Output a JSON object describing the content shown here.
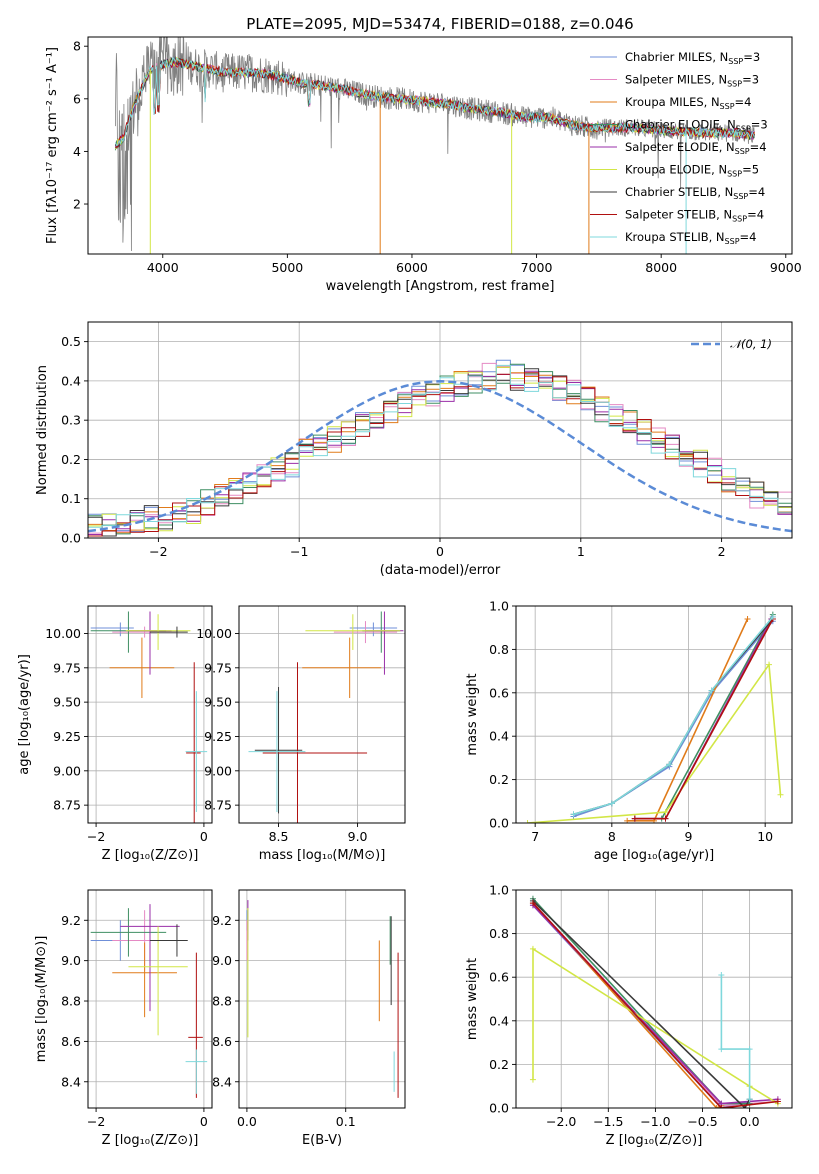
{
  "colors": {
    "c0": "#6f8fd8",
    "c1": "#e58ac4",
    "c2": "#e07b1a",
    "c3": "#3f8f63",
    "c4": "#9a2fa8",
    "c5": "#d2e646",
    "c6": "#3a3a3a",
    "c7": "#b01010",
    "c8": "#7fd8dc",
    "gray": "#808080",
    "gauss": "#5b8bd6"
  },
  "chart_data": [
    {
      "id": "spectrum",
      "type": "line",
      "title": "PLATE=2095, MJD=53474, FIBERID=0188, z=0.046",
      "xlabel": "wavelength [Angstrom, rest frame]",
      "ylabel": "Flux [fλ10⁻¹⁷ erg cm⁻² s⁻¹ A⁻¹]",
      "xlim": [
        3400,
        9050
      ],
      "ylim": [
        0.1,
        8.35
      ],
      "xticks": [
        4000,
        5000,
        6000,
        7000,
        8000,
        9000
      ],
      "yticks": [
        2,
        4,
        6,
        8
      ],
      "grid": false,
      "legend_position": "top-right",
      "legend": [
        {
          "text": "Chabrier MILES, N",
          "sub": "SSP",
          "tail": "=3",
          "color": "c0"
        },
        {
          "text": "Salpeter MILES, N",
          "sub": "SSP",
          "tail": "=3",
          "color": "c1"
        },
        {
          "text": "Kroupa MILES, N",
          "sub": "SSP",
          "tail": "=4",
          "color": "c2"
        },
        {
          "text": "Chabrier ELODIE, N",
          "sub": "SSP",
          "tail": "=3",
          "color": "c3"
        },
        {
          "text": "Salpeter ELODIE, N",
          "sub": "SSP",
          "tail": "=4",
          "color": "c4"
        },
        {
          "text": "Kroupa ELODIE, N",
          "sub": "SSP",
          "tail": "=5",
          "color": "c5"
        },
        {
          "text": "Chabrier STELIB, N",
          "sub": "SSP",
          "tail": "=4",
          "color": "c6"
        },
        {
          "text": "Salpeter STELIB, N",
          "sub": "SSP",
          "tail": "=4",
          "color": "c7"
        },
        {
          "text": "Kroupa STELIB, N",
          "sub": "SSP",
          "tail": "=4",
          "color": "c8"
        }
      ],
      "continuum": {
        "wavelength": [
          3620,
          3700,
          3800,
          3900,
          4000,
          4100,
          4300,
          4500,
          4700,
          4900,
          5100,
          5300,
          5500,
          5700,
          5900,
          6100,
          6300,
          6500,
          6700,
          6900,
          7100,
          7300,
          7400,
          7600,
          7800,
          8000,
          8200,
          8400,
          8600,
          8750
        ],
        "flux": [
          4.4,
          4.8,
          6.1,
          7.1,
          7.3,
          7.4,
          7.2,
          7.0,
          7.0,
          6.9,
          6.6,
          6.5,
          6.3,
          6.1,
          6.0,
          5.9,
          5.8,
          5.6,
          5.5,
          5.3,
          5.3,
          5.0,
          4.9,
          4.9,
          4.9,
          4.8,
          4.75,
          4.7,
          4.7,
          4.6
        ]
      }
    },
    {
      "id": "residuals",
      "type": "line",
      "xlabel": "(data-model)/error",
      "ylabel": "Normed distribution",
      "xlim": [
        -2.5,
        2.5
      ],
      "ylim": [
        0.0,
        0.55
      ],
      "xticks": [
        -2,
        -1,
        0,
        1,
        2
      ],
      "yticks": [
        0.0,
        0.1,
        0.2,
        0.3,
        0.4,
        0.5
      ],
      "grid": true,
      "legend_position": "top-right",
      "legend": [
        {
          "text": "𝒩(0, 1)",
          "color": "gauss"
        }
      ],
      "bin_width": 0.1,
      "bin_start": -2.5,
      "base_values": [
        0.03,
        0.03,
        0.04,
        0.04,
        0.05,
        0.05,
        0.06,
        0.07,
        0.09,
        0.11,
        0.12,
        0.14,
        0.16,
        0.17,
        0.19,
        0.22,
        0.24,
        0.25,
        0.27,
        0.29,
        0.3,
        0.32,
        0.34,
        0.36,
        0.37,
        0.38,
        0.39,
        0.4,
        0.41,
        0.42,
        0.41,
        0.4,
        0.4,
        0.38,
        0.37,
        0.35,
        0.33,
        0.31,
        0.29,
        0.27,
        0.25,
        0.23,
        0.21,
        0.19,
        0.17,
        0.15,
        0.13,
        0.11,
        0.1,
        0.09,
        0.08
      ],
      "model_count": 9
    },
    {
      "id": "age-vs-Z",
      "type": "scatter",
      "xlabel": "Z [log₁₀(Z/Z⊙)]",
      "ylabel": "age  [log₁₀(age/yr)]",
      "xlim": [
        -2.15,
        0.15
      ],
      "ylim": [
        8.62,
        10.2
      ],
      "xticks": [
        -2,
        0
      ],
      "yticks": [
        8.75,
        9.0,
        9.25,
        9.5,
        9.75,
        10.0
      ],
      "grid": true,
      "points": [
        {
          "x": -1.55,
          "y": 10.04,
          "dx": [
            -0.55,
            0.25
          ],
          "dy": [
            0.06,
            0.04
          ],
          "color": "c0"
        },
        {
          "x": -1.1,
          "y": 10.01,
          "dx": [
            -0.6,
            0.6
          ],
          "dy": [
            0.04,
            0.04
          ],
          "color": "c1"
        },
        {
          "x": -1.15,
          "y": 9.75,
          "dx": [
            -0.6,
            0.6
          ],
          "dy": [
            0.22,
            0.22
          ],
          "color": "c2"
        },
        {
          "x": -1.4,
          "y": 10.02,
          "dx": [
            -0.7,
            0.7
          ],
          "dy": [
            0.16,
            0.14
          ],
          "color": "c3"
        },
        {
          "x": -1.0,
          "y": 10.02,
          "dx": [
            -0.4,
            0.4
          ],
          "dy": [
            0.32,
            0.14
          ],
          "color": "c4"
        },
        {
          "x": -0.85,
          "y": 10.02,
          "dx": [
            -0.6,
            0.6
          ],
          "dy": [
            0.14,
            0.12
          ],
          "color": "c5"
        },
        {
          "x": -0.5,
          "y": 10.01,
          "dx": [
            -0.5,
            0.2
          ],
          "dy": [
            0.04,
            0.04
          ],
          "color": "c6"
        },
        {
          "x": -0.18,
          "y": 9.13,
          "dx": [
            -0.15,
            0.12
          ],
          "dy": [
            0.66,
            0.66
          ],
          "color": "c7"
        },
        {
          "x": -0.14,
          "y": 9.14,
          "dx": [
            -0.2,
            0.2
          ],
          "dy": [
            0.44,
            0.44
          ],
          "color": "c8"
        }
      ]
    },
    {
      "id": "age-vs-mass",
      "type": "scatter",
      "xlabel": "mass [log₁₀(M/M⊙)]",
      "ylabel": "",
      "xlim": [
        8.25,
        9.3
      ],
      "ylim": [
        8.62,
        10.2
      ],
      "xticks": [
        8.5,
        9.0
      ],
      "yticks": [
        8.75,
        9.0,
        9.25,
        9.5,
        9.75,
        10.0
      ],
      "grid": true,
      "points": [
        {
          "x": 9.1,
          "y": 10.04,
          "dx": [
            -0.15,
            0.15
          ],
          "dy": [
            0.06,
            0.04
          ],
          "color": "c0"
        },
        {
          "x": 9.05,
          "y": 10.01,
          "dx": [
            -0.2,
            0.2
          ],
          "dy": [
            0.08,
            0.08
          ],
          "color": "c1"
        },
        {
          "x": 8.95,
          "y": 9.75,
          "dx": [
            -0.3,
            0.2
          ],
          "dy": [
            0.22,
            0.22
          ],
          "color": "c2"
        },
        {
          "x": 9.15,
          "y": 10.02,
          "dx": [
            -0.12,
            0.12
          ],
          "dy": [
            0.16,
            0.14
          ],
          "color": "c3"
        },
        {
          "x": 9.17,
          "y": 10.02,
          "dx": [
            -0.12,
            0.12
          ],
          "dy": [
            0.32,
            0.14
          ],
          "color": "c4"
        },
        {
          "x": 8.97,
          "y": 10.02,
          "dx": [
            -0.3,
            0.3
          ],
          "dy": [
            0.14,
            0.12
          ],
          "color": "c5"
        },
        {
          "x": 8.5,
          "y": 9.15,
          "dx": [
            -0.15,
            0.15
          ],
          "dy": [
            0.46,
            0.46
          ],
          "color": "c6"
        },
        {
          "x": 8.62,
          "y": 9.13,
          "dx": [
            -0.22,
            0.44
          ],
          "dy": [
            0.66,
            0.66
          ],
          "color": "c7"
        },
        {
          "x": 8.49,
          "y": 9.14,
          "dx": [
            -0.18,
            0.18
          ],
          "dy": [
            0.44,
            0.44
          ],
          "color": "c8"
        }
      ]
    },
    {
      "id": "mass-weight-vs-age",
      "type": "line",
      "xlabel": "age  [log₁₀(age/yr)]",
      "ylabel": "mass weight",
      "xlim": [
        6.75,
        10.35
      ],
      "ylim": [
        0.0,
        1.0
      ],
      "xticks": [
        7,
        8,
        9,
        10
      ],
      "yticks": [
        0.0,
        0.2,
        0.4,
        0.6,
        0.8,
        1.0
      ],
      "grid": true,
      "series": [
        {
          "color": "c0",
          "x": [
            7.5,
            8.0,
            8.75,
            9.3,
            10.1
          ],
          "y": [
            0.03,
            0.09,
            0.26,
            0.6,
            0.93
          ]
        },
        {
          "color": "c1",
          "x": [
            8.3,
            8.7,
            10.1
          ],
          "y": [
            0.02,
            0.02,
            0.95
          ]
        },
        {
          "color": "c2",
          "x": [
            8.2,
            8.55,
            9.77
          ],
          "y": [
            0.01,
            0.01,
            0.94
          ]
        },
        {
          "color": "c3",
          "x": [
            8.3,
            8.65,
            10.1
          ],
          "y": [
            0.02,
            0.02,
            0.96
          ]
        },
        {
          "color": "c4",
          "x": [
            8.3,
            8.7,
            10.08
          ],
          "y": [
            0.02,
            0.02,
            0.94
          ]
        },
        {
          "color": "c5",
          "x": [
            6.9,
            8.7,
            10.05,
            10.2
          ],
          "y": [
            0.0,
            0.05,
            0.73,
            0.13
          ]
        },
        {
          "color": "c6",
          "x": [
            7.5,
            8.0,
            8.75,
            9.3,
            10.1
          ],
          "y": [
            0.04,
            0.09,
            0.27,
            0.61,
            0.94
          ]
        },
        {
          "color": "c7",
          "x": [
            8.3,
            8.7,
            10.1
          ],
          "y": [
            0.02,
            0.02,
            0.94
          ]
        },
        {
          "color": "c8",
          "x": [
            7.5,
            8.0,
            8.75,
            9.3,
            10.1
          ],
          "y": [
            0.04,
            0.09,
            0.27,
            0.61,
            0.95
          ]
        }
      ]
    },
    {
      "id": "mass-vs-Z",
      "type": "scatter",
      "xlabel": "Z [log₁₀(Z/Z⊙)]",
      "ylabel": "mass [log₁₀(M/M⊙)]",
      "xlim": [
        -2.15,
        0.15
      ],
      "ylim": [
        8.27,
        9.35
      ],
      "xticks": [
        -2,
        0
      ],
      "yticks": [
        8.4,
        8.6,
        8.8,
        9.0,
        9.2
      ],
      "grid": true,
      "points": [
        {
          "x": -1.55,
          "y": 9.1,
          "dx": [
            -0.55,
            0.25
          ],
          "dy": [
            0.1,
            0.1
          ],
          "color": "c0"
        },
        {
          "x": -1.1,
          "y": 9.1,
          "dx": [
            -0.6,
            0.6
          ],
          "dy": [
            0.15,
            0.15
          ],
          "color": "c1"
        },
        {
          "x": -1.1,
          "y": 8.94,
          "dx": [
            -0.6,
            0.6
          ],
          "dy": [
            0.22,
            0.15
          ],
          "color": "c2"
        },
        {
          "x": -1.4,
          "y": 9.14,
          "dx": [
            -0.7,
            0.7
          ],
          "dy": [
            0.12,
            0.12
          ],
          "color": "c3"
        },
        {
          "x": -1.0,
          "y": 9.17,
          "dx": [
            -0.55,
            0.55
          ],
          "dy": [
            0.42,
            0.11
          ],
          "color": "c4"
        },
        {
          "x": -0.85,
          "y": 8.97,
          "dx": [
            -0.55,
            0.55
          ],
          "dy": [
            0.34,
            0.2
          ],
          "color": "c5"
        },
        {
          "x": -0.5,
          "y": 9.1,
          "dx": [
            -0.5,
            0.2
          ],
          "dy": [
            0.08,
            0.08
          ],
          "color": "c6"
        },
        {
          "x": -0.14,
          "y": 8.62,
          "dx": [
            -0.15,
            0.12
          ],
          "dy": [
            0.3,
            0.42
          ],
          "color": "c7"
        },
        {
          "x": -0.14,
          "y": 8.5,
          "dx": [
            -0.2,
            0.2
          ],
          "dy": [
            0.16,
            0.06
          ],
          "color": "c8"
        }
      ]
    },
    {
      "id": "mass-vs-EBV",
      "type": "scatter",
      "xlabel": "E(B-V)",
      "ylabel": "",
      "xlim": [
        -0.008,
        0.16
      ],
      "ylim": [
        8.27,
        9.35
      ],
      "xticks": [
        0.0,
        0.1
      ],
      "yticks": [
        8.4,
        8.6,
        8.8,
        9.0,
        9.2
      ],
      "grid": true,
      "points": [
        {
          "x": 0.0,
          "y": 9.2,
          "dx": [
            0,
            0
          ],
          "dy": [
            0.05,
            0.05
          ],
          "color": "c0"
        },
        {
          "x": 0.0,
          "y": 9.1,
          "dx": [
            0,
            0
          ],
          "dy": [
            0.1,
            0.1
          ],
          "color": "c1"
        },
        {
          "x": 0.134,
          "y": 8.9,
          "dx": [
            0,
            0
          ],
          "dy": [
            0.2,
            0.2
          ],
          "color": "c2"
        },
        {
          "x": 0.145,
          "y": 9.1,
          "dx": [
            0,
            0
          ],
          "dy": [
            0.12,
            0.12
          ],
          "color": "c3"
        },
        {
          "x": 0.001,
          "y": 9.2,
          "dx": [
            0,
            0
          ],
          "dy": [
            0.1,
            0.1
          ],
          "color": "c4"
        },
        {
          "x": 0.001,
          "y": 8.94,
          "dx": [
            0,
            0
          ],
          "dy": [
            0.32,
            0.32
          ],
          "color": "c5"
        },
        {
          "x": 0.146,
          "y": 9.0,
          "dx": [
            0,
            0
          ],
          "dy": [
            0.22,
            0.22
          ],
          "color": "c6"
        },
        {
          "x": 0.153,
          "y": 8.68,
          "dx": [
            0,
            0
          ],
          "dy": [
            0.36,
            0.36
          ],
          "color": "c7"
        },
        {
          "x": 0.149,
          "y": 8.45,
          "dx": [
            0,
            0
          ],
          "dy": [
            0.1,
            0.1
          ],
          "color": "c8"
        }
      ]
    },
    {
      "id": "mass-weight-vs-Z",
      "type": "line",
      "xlabel": "Z [log₁₀(Z/Z⊙)]",
      "ylabel": "mass weight",
      "xlim": [
        -2.48,
        0.45
      ],
      "ylim": [
        0.0,
        1.0
      ],
      "xticks": [
        -2.0,
        -1.5,
        -1.0,
        -0.5,
        0.0
      ],
      "yticks": [
        0.0,
        0.2,
        0.4,
        0.6,
        0.8,
        1.0
      ],
      "grid": true,
      "series": [
        {
          "color": "c0",
          "x": [
            -2.3,
            -0.3,
            0.0
          ],
          "y": [
            0.93,
            0.0,
            0.03
          ]
        },
        {
          "color": "c1",
          "x": [
            -2.3,
            -0.3,
            0.3
          ],
          "y": [
            0.94,
            0.01,
            0.03
          ]
        },
        {
          "color": "c2",
          "x": [
            -2.3,
            -0.35,
            -0.3
          ],
          "y": [
            0.94,
            0.0,
            0.01
          ]
        },
        {
          "color": "c3",
          "x": [
            -2.3,
            -0.3,
            0.0
          ],
          "y": [
            0.96,
            0.02,
            0.02
          ]
        },
        {
          "color": "c4",
          "x": [
            -2.3,
            -0.3,
            0.3
          ],
          "y": [
            0.93,
            0.02,
            0.04
          ]
        },
        {
          "color": "c5",
          "x": [
            -2.3,
            -2.3,
            0.0,
            0.3
          ],
          "y": [
            0.13,
            0.73,
            0.1,
            0.02
          ]
        },
        {
          "color": "c6",
          "x": [
            -2.3,
            -0.05,
            0.0
          ],
          "y": [
            0.95,
            0.0,
            0.04
          ]
        },
        {
          "color": "c7",
          "x": [
            -2.3,
            -0.3,
            0.3
          ],
          "y": [
            0.94,
            0.0,
            0.03
          ]
        },
        {
          "color": "c8",
          "x": [
            -0.3,
            -0.3,
            0.0,
            0.0
          ],
          "y": [
            0.61,
            0.27,
            0.27,
            0.04
          ]
        }
      ]
    }
  ]
}
